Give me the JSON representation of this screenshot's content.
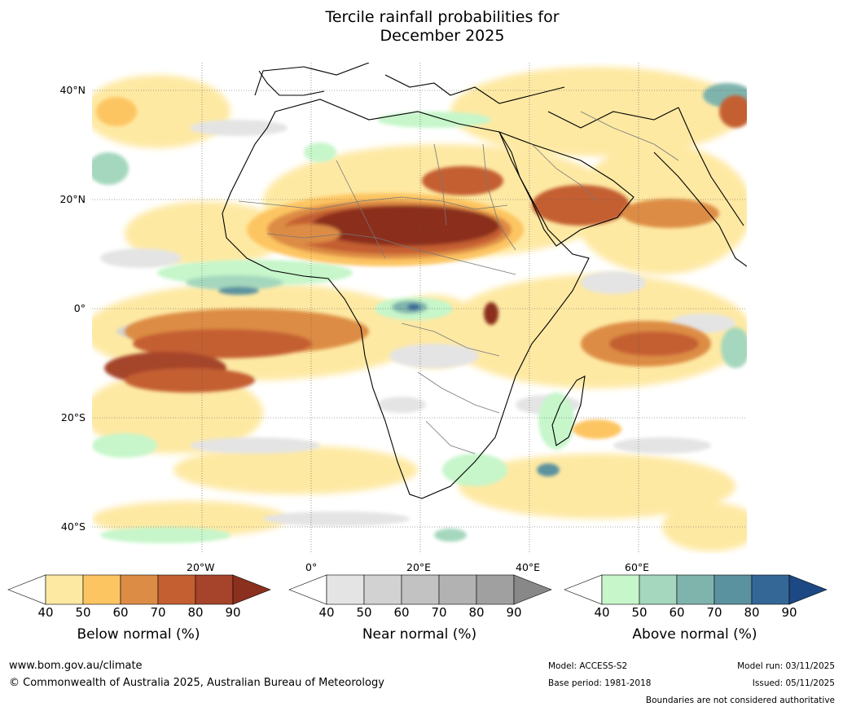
{
  "title": {
    "line1": "Tercile rainfall probabilities for",
    "line2": "December 2025"
  },
  "map": {
    "lat_labels": [
      "40°N",
      "20°N",
      "0°",
      "20°S",
      "40°S"
    ],
    "lon_labels": [
      "20°W",
      "0°",
      "20°E",
      "40°E",
      "60°E"
    ]
  },
  "legends": [
    {
      "caption": "Below normal (%)",
      "ticks": [
        "40",
        "50",
        "60",
        "70",
        "80",
        "90"
      ],
      "colors": [
        "#ffffff",
        "#fee9a3",
        "#fdc562",
        "#dd8c45",
        "#c45f32",
        "#a5442a",
        "#8b2f1e"
      ]
    },
    {
      "caption": "Near normal (%)",
      "ticks": [
        "40",
        "50",
        "60",
        "70",
        "80",
        "90"
      ],
      "colors": [
        "#ffffff",
        "#e4e4e4",
        "#d2d2d2",
        "#c2c2c2",
        "#b2b2b2",
        "#a0a0a0",
        "#888888"
      ]
    },
    {
      "caption": "Above normal (%)",
      "ticks": [
        "40",
        "50",
        "60",
        "70",
        "80",
        "90"
      ],
      "colors": [
        "#ffffff",
        "#c6f6ca",
        "#a4d7bd",
        "#7fb4ad",
        "#5b929f",
        "#346796",
        "#1c4883"
      ]
    }
  ],
  "footer": {
    "url": "www.bom.gov.au/climate",
    "copyright": "© Commonwealth of Australia 2025, Australian Bureau of Meteorology",
    "model": "Model: ACCESS-S2",
    "base_period": "Base period: 1981-2018",
    "model_run": "Model run: 03/11/2025",
    "issued": "Issued: 05/11/2025",
    "disclaimer": "Boundaries are not considered authoritative"
  }
}
